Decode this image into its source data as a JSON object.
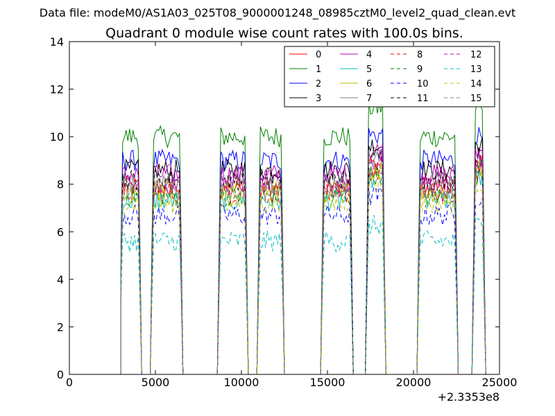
{
  "suptitle": "Data file: modeM0/AS1A03_025T08_9000001248_08985cztM0_level2_quad_clean.evt",
  "chart_data": {
    "type": "line",
    "title": "Quadrant 0 module wise count rates with 100.0s bins.",
    "xlabel": "",
    "ylabel": "",
    "x_offset_label": "+2.3353e8",
    "xlim": [
      0,
      25000
    ],
    "ylim": [
      0,
      14
    ],
    "x_ticks": [
      0,
      5000,
      10000,
      15000,
      20000,
      25000
    ],
    "x_tick_labels": [
      "0",
      "5000",
      "10000",
      "15000",
      "20000",
      "25000"
    ],
    "y_ticks": [
      0,
      2,
      4,
      6,
      8,
      10,
      12,
      14
    ],
    "y_tick_labels": [
      "0",
      "2",
      "4",
      "6",
      "8",
      "10",
      "12",
      "14"
    ],
    "grid": false,
    "legend_position": "top-right",
    "legend_columns": 4,
    "segments": [
      {
        "start": 3000,
        "end": 4100
      },
      {
        "start": 4800,
        "end": 6500
      },
      {
        "start": 8700,
        "end": 10300
      },
      {
        "start": 11000,
        "end": 12400
      },
      {
        "start": 14700,
        "end": 16400
      },
      {
        "start": 17300,
        "end": 18300
      },
      {
        "start": 20300,
        "end": 22500
      },
      {
        "start": 23500,
        "end": 24100
      }
    ],
    "series": [
      {
        "name": "0",
        "color": "#ff0000",
        "dash": "solid",
        "level": 7.9
      },
      {
        "name": "1",
        "color": "#008000",
        "dash": "solid",
        "level": 10.0
      },
      {
        "name": "2",
        "color": "#0000ff",
        "dash": "solid",
        "level": 9.0
      },
      {
        "name": "3",
        "color": "#000000",
        "dash": "solid",
        "level": 8.6
      },
      {
        "name": "4",
        "color": "#bf00bf",
        "dash": "solid",
        "level": 8.4
      },
      {
        "name": "5",
        "color": "#00bfbf",
        "dash": "solid",
        "level": 7.3
      },
      {
        "name": "6",
        "color": "#bfbf00",
        "dash": "solid",
        "level": 7.7
      },
      {
        "name": "7",
        "color": "#808080",
        "dash": "solid",
        "level": 8.1
      },
      {
        "name": "8",
        "color": "#ff0000",
        "dash": "dashed",
        "level": 7.6
      },
      {
        "name": "9",
        "color": "#008000",
        "dash": "dashed",
        "level": 7.5
      },
      {
        "name": "10",
        "color": "#0000ff",
        "dash": "dashed",
        "level": 6.7
      },
      {
        "name": "11",
        "color": "#000000",
        "dash": "dashed",
        "level": 8.2
      },
      {
        "name": "12",
        "color": "#bf00bf",
        "dash": "dashed",
        "level": 8.0
      },
      {
        "name": "13",
        "color": "#00bfbf",
        "dash": "dashed",
        "level": 5.6
      },
      {
        "name": "14",
        "color": "#bfbf00",
        "dash": "dashed",
        "level": 7.2
      },
      {
        "name": "15",
        "color": "#808080",
        "dash": "dashed",
        "level": 7.8
      }
    ]
  }
}
